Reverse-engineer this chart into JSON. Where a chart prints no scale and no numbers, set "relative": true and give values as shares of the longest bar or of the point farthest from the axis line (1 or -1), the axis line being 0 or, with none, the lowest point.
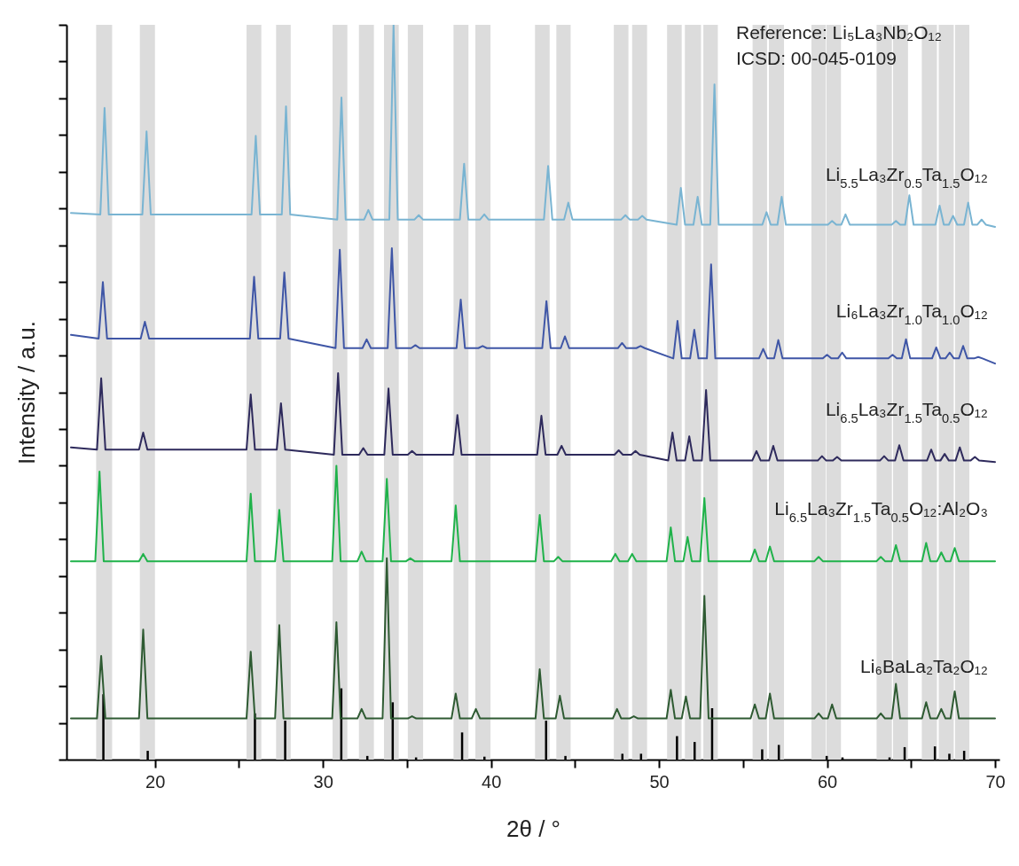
{
  "chart_data": {
    "type": "line",
    "relative": true,
    "xlabel": "2θ / °",
    "ylabel": "Intensity / a.u.",
    "xlim": [
      15,
      70
    ],
    "xticks": [
      20,
      {
        "value": 25,
        "label": null
      },
      30,
      {
        "value": 35,
        "label": null
      },
      40,
      {
        "value": 45,
        "label": null
      },
      50,
      {
        "value": 55,
        "label": null
      },
      60,
      {
        "value": 65,
        "label": null
      },
      70
    ],
    "annotations": [
      "Reference: Li₅La₃Nb₂O₁₂",
      "ICSD: 00-045-0109"
    ],
    "bands": [
      {
        "axis": "x",
        "from": 16.5,
        "to": 17.45,
        "color": "#dcdcdc"
      },
      {
        "axis": "x",
        "from": 19.1,
        "to": 20.0,
        "color": "#dcdcdc"
      },
      {
        "axis": "x",
        "from": 25.45,
        "to": 26.33,
        "color": "#dcdcdc"
      },
      {
        "axis": "x",
        "from": 27.21,
        "to": 28.08,
        "color": "#dcdcdc"
      },
      {
        "axis": "x",
        "from": 30.57,
        "to": 31.45,
        "color": "#dcdcdc"
      },
      {
        "axis": "x",
        "from": 32.14,
        "to": 33.03,
        "color": "#dcdcdc"
      },
      {
        "axis": "x",
        "from": 33.63,
        "to": 34.51,
        "color": "#dcdcdc"
      },
      {
        "axis": "x",
        "from": 35.05,
        "to": 35.96,
        "color": "#dcdcdc"
      },
      {
        "axis": "x",
        "from": 37.77,
        "to": 38.66,
        "color": "#dcdcdc"
      },
      {
        "axis": "x",
        "from": 39.07,
        "to": 39.97,
        "color": "#dcdcdc"
      },
      {
        "axis": "x",
        "from": 42.62,
        "to": 43.49,
        "color": "#dcdcdc"
      },
      {
        "axis": "x",
        "from": 43.89,
        "to": 44.74,
        "color": "#dcdcdc"
      },
      {
        "axis": "x",
        "from": 47.31,
        "to": 48.18,
        "color": "#dcdcdc"
      },
      {
        "axis": "x",
        "from": 48.4,
        "to": 49.29,
        "color": "#dcdcdc"
      },
      {
        "axis": "x",
        "from": 50.48,
        "to": 51.35,
        "color": "#dcdcdc"
      },
      {
        "axis": "x",
        "from": 51.54,
        "to": 52.5,
        "color": "#dcdcdc"
      },
      {
        "axis": "x",
        "from": 52.64,
        "to": 53.5,
        "color": "#dcdcdc"
      },
      {
        "axis": "x",
        "from": 55.57,
        "to": 56.43,
        "color": "#dcdcdc"
      },
      {
        "axis": "x",
        "from": 56.54,
        "to": 57.44,
        "color": "#dcdcdc"
      },
      {
        "axis": "x",
        "from": 59.07,
        "to": 59.93,
        "color": "#dcdcdc"
      },
      {
        "axis": "x",
        "from": 59.97,
        "to": 60.83,
        "color": "#dcdcdc"
      },
      {
        "axis": "x",
        "from": 62.95,
        "to": 63.86,
        "color": "#dcdcdc"
      },
      {
        "axis": "x",
        "from": 63.93,
        "to": 64.82,
        "color": "#dcdcdc"
      },
      {
        "axis": "x",
        "from": 65.64,
        "to": 66.54,
        "color": "#dcdcdc"
      },
      {
        "axis": "x",
        "from": 66.65,
        "to": 67.54,
        "color": "#dcdcdc"
      },
      {
        "axis": "x",
        "from": 67.62,
        "to": 68.47,
        "color": "#dcdcdc"
      }
    ],
    "series": [
      {
        "name": "Li$_{5.5}$La₃Zr$_{0.5}$Ta$_{1.5}$O₁₂",
        "color": "#79b4d2",
        "x": [
          15,
          16.75,
          17,
          17.25,
          19.25,
          19.5,
          19.75,
          25.75,
          26,
          26.25,
          27.55,
          27.8,
          28.05,
          30.85,
          31.1,
          31.35,
          32.45,
          32.7,
          32.95,
          33.95,
          34.2,
          34.45,
          35.45,
          35.7,
          35.95,
          38.15,
          38.4,
          38.65,
          39.35,
          39.6,
          39.85,
          43.15,
          43.4,
          43.65,
          44.35,
          44.6,
          44.85,
          47.75,
          48,
          48.25,
          48.75,
          49,
          49.25,
          51.05,
          51.3,
          51.55,
          52.05,
          52.3,
          52.55,
          53.05,
          53.3,
          53.55,
          56.15,
          56.4,
          56.65,
          57.05,
          57.3,
          57.55,
          60.05,
          60.3,
          60.55,
          60.85,
          61.1,
          61.35,
          63.85,
          64.1,
          64.35,
          64.65,
          64.9,
          65.15,
          66.45,
          66.7,
          66.95,
          67.25,
          67.5,
          67.75,
          68.15,
          68.4,
          68.65,
          68.95,
          69.2,
          69.45,
          70
        ],
        "values": [
          0.744,
          0.742,
          0.887,
          0.742,
          0.742,
          0.855,
          0.742,
          0.742,
          0.849,
          0.742,
          0.742,
          0.889,
          0.742,
          0.735,
          0.901,
          0.735,
          0.735,
          0.748,
          0.735,
          0.735,
          1,
          0.735,
          0.735,
          0.741,
          0.735,
          0.735,
          0.811,
          0.735,
          0.735,
          0.742,
          0.735,
          0.735,
          0.808,
          0.735,
          0.735,
          0.758,
          0.735,
          0.735,
          0.741,
          0.735,
          0.735,
          0.74,
          0.735,
          0.728,
          0.778,
          0.728,
          0.728,
          0.766,
          0.728,
          0.728,
          0.919,
          0.728,
          0.728,
          0.745,
          0.728,
          0.728,
          0.766,
          0.728,
          0.728,
          0.733,
          0.728,
          0.728,
          0.742,
          0.728,
          0.728,
          0.733,
          0.728,
          0.728,
          0.768,
          0.728,
          0.728,
          0.754,
          0.728,
          0.728,
          0.74,
          0.728,
          0.728,
          0.758,
          0.728,
          0.728,
          0.735,
          0.728,
          0.725
        ]
      },
      {
        "name": "Li₆La₃Zr$_{1.0}$Ta$_{1.0}$O₁₂",
        "color": "#3f56a6",
        "x": [
          15,
          16.65,
          16.9,
          17.15,
          19.15,
          19.4,
          19.65,
          25.65,
          25.9,
          26.15,
          27.45,
          27.7,
          27.95,
          30.75,
          31,
          31.25,
          32.35,
          32.6,
          32.85,
          33.85,
          34.1,
          34.35,
          35.25,
          35.5,
          35.75,
          37.95,
          38.2,
          38.45,
          39.25,
          39.5,
          39.75,
          43.05,
          43.3,
          43.55,
          44.15,
          44.4,
          44.65,
          47.55,
          47.8,
          48.05,
          48.65,
          48.9,
          49.15,
          50.85,
          51.1,
          51.35,
          51.85,
          52.1,
          52.35,
          52.85,
          53.1,
          53.35,
          55.95,
          56.2,
          56.45,
          56.85,
          57.1,
          57.35,
          59.75,
          60,
          60.25,
          60.65,
          60.9,
          61.15,
          63.65,
          63.9,
          64.15,
          64.45,
          64.7,
          64.95,
          66.25,
          66.5,
          66.75,
          67.05,
          67.3,
          67.55,
          67.85,
          68.1,
          68.35,
          68.75,
          69,
          69.25,
          70
        ],
        "values": [
          0.578,
          0.573,
          0.65,
          0.573,
          0.573,
          0.596,
          0.573,
          0.573,
          0.657,
          0.573,
          0.573,
          0.663,
          0.573,
          0.56,
          0.694,
          0.56,
          0.56,
          0.572,
          0.56,
          0.56,
          0.696,
          0.56,
          0.56,
          0.564,
          0.56,
          0.56,
          0.626,
          0.56,
          0.56,
          0.563,
          0.56,
          0.56,
          0.624,
          0.56,
          0.56,
          0.576,
          0.56,
          0.56,
          0.567,
          0.56,
          0.56,
          0.563,
          0.56,
          0.546,
          0.597,
          0.546,
          0.546,
          0.585,
          0.546,
          0.546,
          0.674,
          0.546,
          0.546,
          0.559,
          0.546,
          0.546,
          0.571,
          0.546,
          0.546,
          0.551,
          0.546,
          0.546,
          0.554,
          0.546,
          0.546,
          0.551,
          0.546,
          0.546,
          0.572,
          0.546,
          0.546,
          0.561,
          0.546,
          0.546,
          0.554,
          0.546,
          0.546,
          0.563,
          0.546,
          0.546,
          0.548,
          0.546,
          0.539
        ]
      },
      {
        "name": "Li$_{6.5}$La₃Zr$_{1.5}$Ta$_{0.5}$O₁₂",
        "color": "#2e2a5c",
        "x": [
          15,
          16.55,
          16.8,
          17.05,
          19.05,
          19.3,
          19.55,
          25.45,
          25.7,
          25.95,
          27.25,
          27.5,
          27.75,
          30.65,
          30.9,
          31.15,
          32.15,
          32.4,
          32.65,
          33.65,
          33.9,
          34.15,
          35.05,
          35.3,
          35.55,
          37.75,
          38,
          38.25,
          42.75,
          43,
          43.25,
          43.95,
          44.2,
          44.45,
          47.35,
          47.6,
          47.85,
          48.35,
          48.6,
          48.85,
          50.55,
          50.8,
          51.05,
          51.55,
          51.8,
          52.05,
          52.55,
          52.8,
          53.05,
          55.55,
          55.8,
          56.05,
          56.55,
          56.8,
          57.05,
          59.45,
          59.7,
          59.95,
          60.35,
          60.6,
          60.85,
          63.15,
          63.4,
          63.65,
          64.05,
          64.3,
          64.55,
          65.95,
          66.2,
          66.45,
          66.75,
          67,
          67.25,
          67.65,
          67.9,
          68.15,
          68.55,
          68.8,
          69.05,
          70
        ],
        "values": [
          0.425,
          0.422,
          0.519,
          0.422,
          0.422,
          0.445,
          0.422,
          0.422,
          0.497,
          0.422,
          0.422,
          0.485,
          0.422,
          0.415,
          0.526,
          0.415,
          0.415,
          0.424,
          0.415,
          0.415,
          0.505,
          0.415,
          0.415,
          0.42,
          0.415,
          0.415,
          0.469,
          0.415,
          0.415,
          0.468,
          0.415,
          0.415,
          0.427,
          0.415,
          0.415,
          0.421,
          0.415,
          0.415,
          0.42,
          0.415,
          0.407,
          0.445,
          0.407,
          0.407,
          0.44,
          0.407,
          0.407,
          0.503,
          0.407,
          0.407,
          0.42,
          0.407,
          0.407,
          0.427,
          0.407,
          0.407,
          0.413,
          0.407,
          0.407,
          0.412,
          0.407,
          0.407,
          0.413,
          0.407,
          0.407,
          0.428,
          0.407,
          0.407,
          0.422,
          0.407,
          0.407,
          0.416,
          0.407,
          0.407,
          0.425,
          0.407,
          0.407,
          0.412,
          0.407,
          0.405
        ]
      },
      {
        "name": "Li$_{6.5}$La₃Zr$_{1.5}$Ta$_{0.5}$O₁₂:Al₂O₃",
        "color": "#1fb24a",
        "x": [
          15,
          16.45,
          16.7,
          16.95,
          19.05,
          19.3,
          19.55,
          25.45,
          25.7,
          25.95,
          27.15,
          27.4,
          27.65,
          30.55,
          30.8,
          31.05,
          32.05,
          32.3,
          32.55,
          33.55,
          33.8,
          34.05,
          34.95,
          35.2,
          35.45,
          37.65,
          37.9,
          38.15,
          42.65,
          42.9,
          43.15,
          43.75,
          44,
          44.25,
          47.15,
          47.4,
          47.65,
          48.15,
          48.4,
          48.65,
          50.45,
          50.7,
          50.95,
          51.45,
          51.7,
          51.95,
          52.45,
          52.7,
          52.95,
          55.45,
          55.7,
          55.95,
          56.35,
          56.6,
          56.85,
          59.25,
          59.5,
          59.75,
          62.95,
          63.2,
          63.45,
          63.85,
          64.1,
          64.35,
          65.65,
          65.9,
          66.15,
          66.55,
          66.8,
          67.05,
          67.35,
          67.6,
          67.85,
          70
        ],
        "values": [
          0.27,
          0.27,
          0.392,
          0.27,
          0.27,
          0.28,
          0.27,
          0.27,
          0.362,
          0.27,
          0.27,
          0.34,
          0.27,
          0.27,
          0.4,
          0.27,
          0.27,
          0.283,
          0.27,
          0.27,
          0.382,
          0.27,
          0.27,
          0.274,
          0.27,
          0.27,
          0.346,
          0.27,
          0.27,
          0.333,
          0.27,
          0.27,
          0.276,
          0.27,
          0.27,
          0.28,
          0.27,
          0.27,
          0.28,
          0.27,
          0.27,
          0.316,
          0.27,
          0.27,
          0.303,
          0.27,
          0.27,
          0.356,
          0.27,
          0.27,
          0.286,
          0.27,
          0.27,
          0.29,
          0.27,
          0.27,
          0.276,
          0.27,
          0.27,
          0.276,
          0.27,
          0.27,
          0.292,
          0.27,
          0.27,
          0.295,
          0.27,
          0.27,
          0.282,
          0.27,
          0.27,
          0.288,
          0.27,
          0.27
        ]
      },
      {
        "name": "Li₆BaLa₂Ta₂O₁₂",
        "color": "#2e5a32",
        "x": [
          15,
          16.55,
          16.8,
          17.05,
          19.05,
          19.3,
          19.55,
          25.45,
          25.7,
          25.95,
          27.15,
          27.4,
          27.65,
          30.55,
          30.8,
          31.05,
          32.05,
          32.3,
          32.55,
          33.55,
          33.8,
          34.05,
          35.05,
          35.3,
          35.55,
          37.65,
          37.9,
          38.15,
          38.85,
          39.1,
          39.35,
          42.65,
          42.9,
          43.15,
          43.85,
          44.1,
          44.35,
          47.25,
          47.5,
          47.75,
          48.25,
          48.5,
          48.75,
          50.45,
          50.7,
          50.95,
          51.35,
          51.6,
          51.85,
          52.45,
          52.7,
          52.95,
          55.45,
          55.7,
          55.95,
          56.35,
          56.6,
          56.85,
          59.25,
          59.5,
          59.75,
          60.05,
          60.3,
          60.55,
          62.95,
          63.2,
          63.45,
          63.85,
          64.1,
          64.35,
          65.65,
          65.9,
          66.15,
          66.55,
          66.8,
          67.05,
          67.35,
          67.6,
          67.85,
          70
        ],
        "values": [
          0.056,
          0.056,
          0.141,
          0.056,
          0.056,
          0.177,
          0.056,
          0.056,
          0.147,
          0.056,
          0.056,
          0.183,
          0.056,
          0.056,
          0.187,
          0.056,
          0.056,
          0.069,
          0.056,
          0.056,
          0.274,
          0.056,
          0.056,
          0.059,
          0.056,
          0.056,
          0.09,
          0.056,
          0.056,
          0.069,
          0.056,
          0.056,
          0.123,
          0.056,
          0.056,
          0.087,
          0.056,
          0.056,
          0.069,
          0.056,
          0.056,
          0.059,
          0.056,
          0.056,
          0.095,
          0.056,
          0.056,
          0.086,
          0.056,
          0.056,
          0.223,
          0.056,
          0.056,
          0.075,
          0.056,
          0.056,
          0.09,
          0.056,
          0.056,
          0.063,
          0.056,
          0.056,
          0.075,
          0.056,
          0.056,
          0.063,
          0.056,
          0.056,
          0.103,
          0.056,
          0.056,
          0.078,
          0.056,
          0.056,
          0.069,
          0.056,
          0.056,
          0.093,
          0.056,
          0.056
        ]
      },
      {
        "type": "bar",
        "color": "#000000",
        "x": [
          16.93,
          19.57,
          25.95,
          27.75,
          31.09,
          32.64,
          34.15,
          35.54,
          38.28,
          39.61,
          43.28,
          44.43,
          47.82,
          48.93,
          51.07,
          52.12,
          53.16,
          56.14,
          57.13,
          59.98,
          60.92,
          63.72,
          64.62,
          66.42,
          67.28,
          68.16
        ],
        "values": [
          0.089,
          0.012,
          0.063,
          0.053,
          0.097,
          0.005,
          0.078,
          0.003,
          0.037,
          0.004,
          0.053,
          0.005,
          0.008,
          0.008,
          0.032,
          0.024,
          0.07,
          0.014,
          0.02,
          0.005,
          0.003,
          0.003,
          0.017,
          0.018,
          0.008,
          0.012
        ]
      }
    ]
  }
}
